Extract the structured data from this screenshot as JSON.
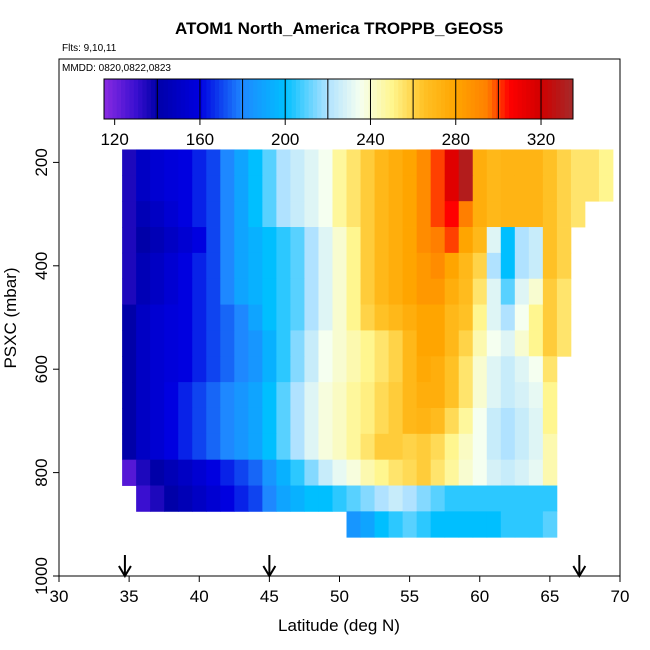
{
  "chart_data": {
    "type": "heatmap",
    "title": "ATOM1 North_America TROPPB_GEOS5",
    "annotations": {
      "flights": "Flts: 9,10,11",
      "dates": "MMDD: 0820,0822,0823"
    },
    "xlabel": "Latitude (deg N)",
    "ylabel": "PSXC (mbar)",
    "xlim": [
      30,
      70
    ],
    "ylim": [
      1000,
      0
    ],
    "x_ticks": [
      "30",
      "35",
      "40",
      "45",
      "50",
      "55",
      "60",
      "65",
      "70"
    ],
    "y_ticks": [
      "200",
      "400",
      "600",
      "800",
      "1000"
    ],
    "colorbar": {
      "min": 115,
      "max": 335,
      "ticks": [
        "120",
        "160",
        "200",
        "240",
        "280",
        "320"
      ],
      "stops": [
        {
          "v": 115,
          "c": "#8a2be2"
        },
        {
          "v": 130,
          "c": "#3a0fd0"
        },
        {
          "v": 140,
          "c": "#0000a8"
        },
        {
          "v": 160,
          "c": "#0000e0"
        },
        {
          "v": 180,
          "c": "#1e88ff"
        },
        {
          "v": 200,
          "c": "#00bfff"
        },
        {
          "v": 220,
          "c": "#b0e2ff"
        },
        {
          "v": 235,
          "c": "#f5fff0"
        },
        {
          "v": 250,
          "c": "#fff68f"
        },
        {
          "v": 265,
          "c": "#ffc125"
        },
        {
          "v": 280,
          "c": "#ffa500"
        },
        {
          "v": 295,
          "c": "#ff7f00"
        },
        {
          "v": 305,
          "c": "#ff0000"
        },
        {
          "v": 320,
          "c": "#d00000"
        },
        {
          "v": 335,
          "c": "#a52a2a"
        }
      ]
    },
    "lat_bins": [
      35,
      36,
      37,
      38,
      39,
      40,
      41,
      42,
      43,
      44,
      45,
      46,
      47,
      48,
      49,
      50,
      51,
      52,
      53,
      54,
      55,
      56,
      57,
      58,
      59,
      60,
      61,
      62,
      63,
      64,
      65,
      66,
      67,
      68,
      69
    ],
    "pressure_bins": [
      200,
      250,
      300,
      350,
      400,
      450,
      500,
      550,
      600,
      650,
      700,
      750,
      800,
      850,
      900
    ],
    "grid_values": [
      [
        135,
        150,
        155,
        158,
        160,
        165,
        170,
        180,
        190,
        200,
        210,
        220,
        225,
        230,
        235,
        248,
        255,
        262,
        270,
        275,
        280,
        290,
        300,
        315,
        330,
        275,
        270,
        272,
        272,
        272,
        265,
        260,
        255,
        255,
        250
      ],
      [
        135,
        150,
        155,
        158,
        160,
        165,
        170,
        180,
        190,
        200,
        210,
        220,
        225,
        230,
        235,
        248,
        255,
        262,
        270,
        275,
        280,
        290,
        300,
        315,
        330,
        275,
        270,
        272,
        272,
        272,
        265,
        260,
        255,
        255,
        250
      ],
      [
        135,
        145,
        150,
        155,
        160,
        165,
        170,
        180,
        190,
        200,
        210,
        220,
        225,
        230,
        235,
        248,
        255,
        262,
        270,
        275,
        280,
        290,
        300,
        305,
        295,
        275,
        270,
        272,
        272,
        272,
        265,
        260,
        255,
        null,
        null
      ],
      [
        135,
        140,
        145,
        150,
        155,
        160,
        170,
        180,
        190,
        195,
        200,
        205,
        210,
        220,
        230,
        240,
        250,
        262,
        270,
        275,
        280,
        290,
        295,
        300,
        280,
        270,
        230,
        200,
        220,
        225,
        265,
        260,
        null,
        null,
        null
      ],
      [
        135,
        145,
        150,
        155,
        160,
        165,
        170,
        180,
        190,
        195,
        200,
        205,
        210,
        220,
        230,
        240,
        250,
        262,
        270,
        275,
        280,
        285,
        290,
        280,
        270,
        260,
        220,
        200,
        220,
        225,
        265,
        260,
        null,
        null,
        null
      ],
      [
        135,
        145,
        150,
        155,
        160,
        165,
        170,
        180,
        190,
        195,
        200,
        205,
        210,
        220,
        230,
        240,
        250,
        262,
        270,
        275,
        280,
        285,
        285,
        275,
        268,
        255,
        230,
        210,
        230,
        240,
        262,
        255,
        null,
        null,
        null
      ],
      [
        140,
        150,
        155,
        158,
        160,
        165,
        170,
        175,
        180,
        190,
        200,
        205,
        210,
        220,
        230,
        240,
        250,
        260,
        265,
        270,
        275,
        280,
        280,
        270,
        265,
        250,
        230,
        220,
        235,
        250,
        262,
        255,
        null,
        null,
        null
      ],
      [
        140,
        150,
        155,
        158,
        160,
        165,
        170,
        175,
        180,
        185,
        195,
        205,
        215,
        225,
        235,
        240,
        245,
        250,
        255,
        260,
        270,
        280,
        280,
        270,
        260,
        245,
        235,
        230,
        240,
        250,
        262,
        255,
        null,
        null,
        null
      ],
      [
        140,
        150,
        155,
        158,
        160,
        165,
        170,
        175,
        180,
        185,
        195,
        205,
        215,
        225,
        235,
        240,
        245,
        250,
        255,
        260,
        270,
        278,
        275,
        265,
        255,
        240,
        230,
        225,
        230,
        235,
        255,
        null,
        null,
        null,
        null
      ],
      [
        140,
        150,
        155,
        160,
        165,
        170,
        175,
        180,
        185,
        190,
        200,
        210,
        220,
        230,
        238,
        242,
        248,
        252,
        258,
        262,
        270,
        275,
        275,
        265,
        255,
        240,
        230,
        225,
        228,
        232,
        250,
        null,
        null,
        null,
        null
      ],
      [
        140,
        150,
        155,
        160,
        165,
        170,
        175,
        180,
        185,
        190,
        200,
        210,
        220,
        230,
        238,
        242,
        248,
        252,
        258,
        262,
        270,
        272,
        268,
        258,
        248,
        235,
        225,
        220,
        225,
        230,
        250,
        null,
        null,
        null,
        null
      ],
      [
        140,
        150,
        155,
        160,
        165,
        170,
        175,
        180,
        185,
        190,
        200,
        210,
        220,
        230,
        238,
        242,
        248,
        255,
        262,
        262,
        260,
        262,
        258,
        250,
        242,
        235,
        225,
        220,
        225,
        230,
        245,
        null,
        null,
        null,
        null
      ],
      [
        125,
        135,
        140,
        145,
        150,
        155,
        160,
        165,
        170,
        175,
        185,
        195,
        205,
        215,
        225,
        232,
        238,
        245,
        250,
        255,
        258,
        262,
        255,
        248,
        240,
        235,
        228,
        225,
        228,
        232,
        245,
        null,
        null,
        null,
        null
      ],
      [
        null,
        130,
        135,
        140,
        145,
        150,
        155,
        160,
        165,
        170,
        180,
        190,
        195,
        200,
        200,
        205,
        210,
        215,
        220,
        225,
        220,
        215,
        210,
        205,
        205,
        205,
        205,
        205,
        205,
        205,
        205,
        null,
        null,
        null,
        null
      ],
      [
        null,
        null,
        null,
        null,
        null,
        null,
        null,
        null,
        null,
        null,
        null,
        null,
        null,
        null,
        null,
        null,
        185,
        190,
        200,
        205,
        210,
        205,
        200,
        200,
        200,
        200,
        200,
        205,
        205,
        205,
        210,
        null,
        null,
        null,
        null
      ]
    ],
    "flight_markers_lat": [
      34.7,
      45.0,
      67.1
    ]
  }
}
